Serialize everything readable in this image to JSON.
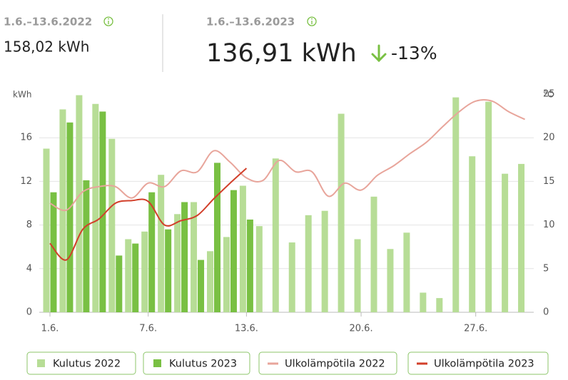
{
  "summary": {
    "previous_period": "1.6.–13.6.2022",
    "previous_total": "158,02 kWh",
    "current_period": "1.6.–13.6.2023",
    "current_total": "136,91 kWh",
    "change": "-13%"
  },
  "chart_data": {
    "type": "bar",
    "y_label": "kWh",
    "y2_label": "°C",
    "categories": [
      "1.6.",
      null,
      null,
      null,
      null,
      null,
      "7.6.",
      null,
      null,
      null,
      null,
      null,
      "13.6.",
      null,
      null,
      null,
      null,
      null,
      null,
      "20.6.",
      null,
      null,
      null,
      null,
      null,
      null,
      "27.6.",
      null,
      null,
      null
    ],
    "ylim": [
      0,
      20
    ],
    "yticks": [
      0,
      4,
      8,
      12,
      16
    ],
    "y2lim": [
      0,
      25
    ],
    "y2ticks": [
      0,
      5,
      10,
      15,
      20,
      25
    ],
    "grid": true,
    "series": [
      {
        "name": "Kulutus 2022",
        "type": "bar",
        "color": "#b7dd96",
        "values": [
          15.0,
          18.6,
          19.9,
          19.1,
          15.9,
          6.7,
          7.4,
          12.6,
          9.0,
          10.1,
          5.6,
          6.9,
          11.6,
          7.9,
          14.1,
          6.4,
          8.9,
          9.3,
          18.2,
          6.7,
          10.6,
          5.8,
          7.3,
          1.8,
          1.3,
          19.7,
          14.3,
          19.3,
          12.7,
          13.6
        ]
      },
      {
        "name": "Kulutus 2023",
        "type": "bar",
        "color": "#79c043",
        "values": [
          11.0,
          17.4,
          12.1,
          18.4,
          5.2,
          6.3,
          11.0,
          7.6,
          10.1,
          4.8,
          13.7,
          11.2,
          8.5,
          null,
          null,
          null,
          null,
          null,
          null,
          null,
          null,
          null,
          null,
          null,
          null,
          null,
          null,
          null,
          null,
          null
        ]
      },
      {
        "name": "Ulkolämpötila 2022",
        "type": "line",
        "axis": "y2",
        "color": "#e8a59b",
        "values": [
          12.5,
          11.7,
          13.8,
          14.4,
          14.4,
          13.1,
          14.8,
          14.4,
          16.2,
          16.1,
          18.5,
          17.2,
          15.4,
          15.1,
          17.4,
          16.1,
          16.1,
          13.3,
          14.8,
          14.0,
          15.7,
          16.8,
          18.2,
          19.5,
          21.3,
          23.0,
          24.2,
          24.2,
          23.0,
          22.1
        ]
      },
      {
        "name": "Ulkolämpötila 2023",
        "type": "line",
        "axis": "y2",
        "color": "#d23f2a",
        "values": [
          7.9,
          6.0,
          9.5,
          10.7,
          12.5,
          12.8,
          12.7,
          10.0,
          10.5,
          11.1,
          13.0,
          14.8,
          16.5,
          null,
          null,
          null,
          null,
          null,
          null,
          null,
          null,
          null,
          null,
          null,
          null,
          null,
          null,
          null,
          null,
          null
        ]
      }
    ]
  }
}
